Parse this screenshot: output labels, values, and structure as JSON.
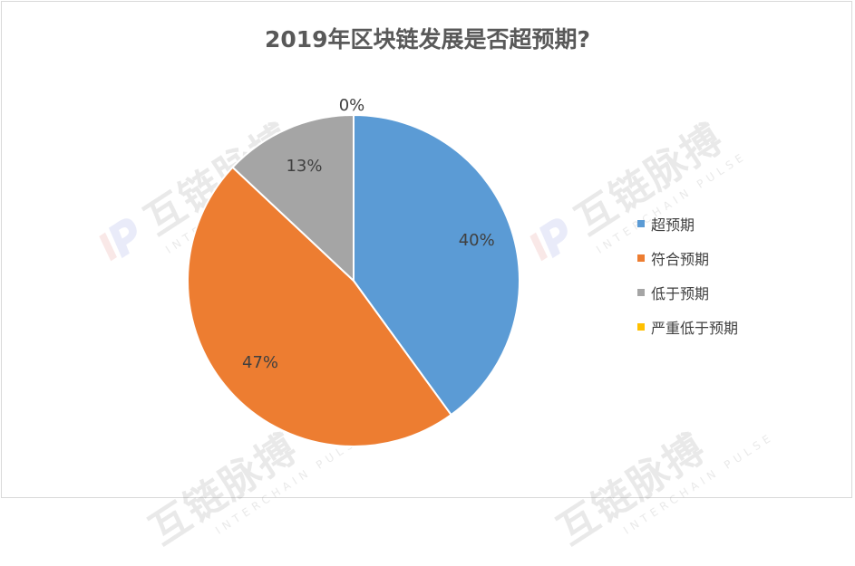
{
  "colors": {
    "series": [
      "#5b9bd5",
      "#ed7d31",
      "#a5a5a5",
      "#ffc000"
    ],
    "text": "#404040",
    "title": "#595959"
  },
  "watermark": {
    "brand": "互链脉搏",
    "sub": "INTERCHAIN PULSE"
  },
  "chart_data": {
    "type": "pie",
    "title": "2019年区块链发展是否超预期?",
    "categories": [
      "超预期",
      "符合预期",
      "低于预期",
      "严重低于预期"
    ],
    "values": [
      40,
      47,
      13,
      0
    ],
    "data_labels": [
      "40%",
      "47%",
      "13%",
      "0%"
    ],
    "legend_position": "right",
    "start_angle": "top, clockwise"
  }
}
